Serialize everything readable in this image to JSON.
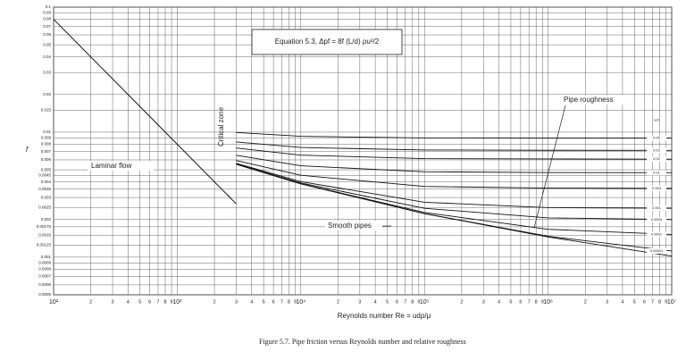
{
  "chart_data": {
    "type": "line",
    "y_label": "f",
    "x_label": "Reynolds number Re = udρ/μ",
    "caption": "Figure 5.7.   Pipe friction versus Reynolds number and relative roughness",
    "equation": "Equation 5.3, Δpf = 8f (L/d) ρu²/2",
    "legend_title": "e/d",
    "annotations": [
      "Laminar flow",
      "Critical zone",
      "Pipe roughness",
      "Smooth pipes"
    ],
    "x_log": true,
    "y_log": true,
    "grid": true,
    "xlim": [
      100,
      10000000
    ],
    "ylim": [
      0.0005,
      0.1
    ],
    "xticks": [
      {
        "value": 100,
        "label": "10²"
      },
      {
        "value": 200,
        "label": "2"
      },
      {
        "value": 300,
        "label": "3"
      },
      {
        "value": 400,
        "label": "4"
      },
      {
        "value": 500,
        "label": "5"
      },
      {
        "value": 600,
        "label": "6"
      },
      {
        "value": 700,
        "label": "7"
      },
      {
        "value": 800,
        "label": "8"
      },
      {
        "value": 900,
        "label": "9"
      },
      {
        "value": 1000,
        "label": "10³"
      },
      {
        "value": 2000,
        "label": "2"
      },
      {
        "value": 3000,
        "label": "3"
      },
      {
        "value": 4000,
        "label": "4"
      },
      {
        "value": 5000,
        "label": "5"
      },
      {
        "value": 6000,
        "label": "6"
      },
      {
        "value": 7000,
        "label": "7"
      },
      {
        "value": 8000,
        "label": "8"
      },
      {
        "value": 9000,
        "label": "9"
      },
      {
        "value": 10000,
        "label": "10⁴"
      },
      {
        "value": 20000,
        "label": "2"
      },
      {
        "value": 30000,
        "label": "3"
      },
      {
        "value": 40000,
        "label": "4"
      },
      {
        "value": 50000,
        "label": "5"
      },
      {
        "value": 60000,
        "label": "6"
      },
      {
        "value": 70000,
        "label": "7"
      },
      {
        "value": 80000,
        "label": "8"
      },
      {
        "value": 90000,
        "label": "9"
      },
      {
        "value": 100000,
        "label": "10⁵"
      },
      {
        "value": 200000,
        "label": "2"
      },
      {
        "value": 300000,
        "label": "3"
      },
      {
        "value": 400000,
        "label": "4"
      },
      {
        "value": 500000,
        "label": "5"
      },
      {
        "value": 600000,
        "label": "6"
      },
      {
        "value": 700000,
        "label": "7"
      },
      {
        "value": 800000,
        "label": "8"
      },
      {
        "value": 900000,
        "label": "9"
      },
      {
        "value": 1000000,
        "label": "10⁶"
      },
      {
        "value": 2000000,
        "label": "2"
      },
      {
        "value": 3000000,
        "label": "3"
      },
      {
        "value": 4000000,
        "label": "4"
      },
      {
        "value": 5000000,
        "label": "5"
      },
      {
        "value": 6000000,
        "label": "6"
      },
      {
        "value": 7000000,
        "label": "7"
      },
      {
        "value": 8000000,
        "label": "8"
      },
      {
        "value": 9000000,
        "label": "9"
      },
      {
        "value": 10000000,
        "label": "10⁷"
      }
    ],
    "yticks": [
      0.1,
      0.09,
      0.08,
      0.07,
      0.06,
      0.05,
      0.04,
      0.03,
      0.02,
      0.015,
      0.01,
      0.009,
      0.008,
      0.007,
      0.006,
      0.005,
      0.0045,
      0.004,
      0.0035,
      0.003,
      0.0025,
      0.002,
      0.00175,
      0.0015,
      0.00125,
      0.001,
      0.0009,
      0.0008,
      0.0007,
      0.0006,
      0.0005
    ],
    "series": [
      {
        "name": "Laminar flow",
        "color": "#111111",
        "x": [
          100,
          3000
        ],
        "values": [
          0.08,
          0.00267
        ]
      },
      {
        "name": "Smooth pipes",
        "color": "#111111",
        "x": [
          3000,
          10000,
          100000,
          1000000,
          10000000
        ],
        "values": [
          0.00554,
          0.00386,
          0.00223,
          0.00145,
          0.00102
        ]
      },
      {
        "name": "0.05",
        "color": "#111111",
        "x": [
          3000,
          10000,
          100000,
          1000000,
          10000000
        ],
        "values": [
          0.00994,
          0.00926,
          0.00899,
          0.00895,
          0.00895
        ]
      },
      {
        "name": "0.03",
        "color": "#111111",
        "x": [
          3000,
          10000,
          100000,
          1000000,
          10000000
        ],
        "values": [
          0.00835,
          0.00754,
          0.0072,
          0.00716,
          0.00715
        ]
      },
      {
        "name": "0.02",
        "color": "#111111",
        "x": [
          3000,
          10000,
          100000,
          1000000,
          10000000
        ],
        "values": [
          0.00747,
          0.00655,
          0.00614,
          0.0061,
          0.00608
        ]
      },
      {
        "name": "0.01",
        "color": "#111111",
        "x": [
          3000,
          10000,
          100000,
          1000000,
          10000000
        ],
        "values": [
          0.00653,
          0.00538,
          0.00482,
          0.00475,
          0.00474
        ]
      },
      {
        "name": "0.004",
        "color": "#111111",
        "x": [
          3000,
          10000,
          100000,
          1000000,
          10000000
        ],
        "values": [
          0.00593,
          0.00452,
          0.00368,
          0.00357,
          0.00355
        ]
      },
      {
        "name": "0.001",
        "color": "#111111",
        "x": [
          3000,
          10000,
          100000,
          1000000,
          10000000
        ],
        "values": [
          0.00563,
          0.00402,
          0.00275,
          0.00249,
          0.00246
        ]
      },
      {
        "name": "0.0004",
        "color": "#111111",
        "x": [
          3000,
          10000,
          100000,
          1000000,
          10000000
        ],
        "values": [
          0.00557,
          0.00392,
          0.00246,
          0.00206,
          0.002
        ]
      },
      {
        "name": "0.0001",
        "color": "#111111",
        "x": [
          3000,
          10000,
          100000,
          1000000,
          10000000
        ],
        "values": [
          0.00554,
          0.00387,
          0.00228,
          0.00167,
          0.00152
        ]
      },
      {
        "name": "0.00001",
        "color": "#111111",
        "x": [
          3000,
          10000,
          100000,
          1000000,
          10000000
        ],
        "values": [
          0.00554,
          0.00386,
          0.00223,
          0.00147,
          0.00112
        ]
      }
    ]
  }
}
